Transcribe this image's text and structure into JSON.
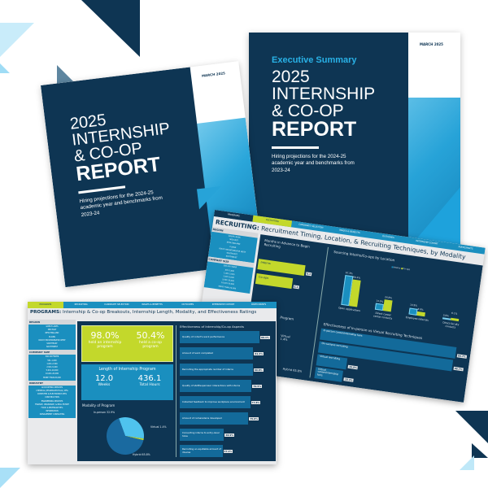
{
  "colors": {
    "navy": "#0e3553",
    "blue": "#1a8fbf",
    "light_blue": "#7fd0f0",
    "lime": "#c3d82b"
  },
  "left_cover": {
    "date": "MARCH 2025",
    "title_line1": "2025",
    "title_line2": "INTERNSHIP",
    "title_line3": "& CO-OP",
    "title_line4": "REPORT",
    "subtitle": "Hiring projections for the 2024-25 academic year and benchmarks from 2023-24"
  },
  "right_cover": {
    "date": "MARCH 2025",
    "kicker": "Executive Summary",
    "title_line1": "2025",
    "title_line2": "INTERNSHIP",
    "title_line3": "& CO-OP",
    "title_line4": "REPORT",
    "subtitle": "Hiring projections for the 2024-25 academic year and benchmarks from 2023-24"
  },
  "tabs": [
    "PROGRAMS",
    "RECRUITING",
    "CANDIDATE SELECTION",
    "WAGES & BENEFITS",
    "OUTCOMES",
    "INTERNSHIP COHORT",
    "PARTICIPANTS"
  ],
  "filters": {
    "region_label": "REGION",
    "regions": [
      "GREAT LAKES",
      "MID EAST",
      "NEW ENGLAND",
      "PLAINS",
      "ROCKY MOUNTAINS/FAR WEST",
      "SOUTHEAST",
      "SOUTHWEST"
    ],
    "size_label": "COMPANY SIZE",
    "sizes": [
      "500 OR FEWER",
      "501-1,000",
      "1,001-2,500",
      "2,501-5,000",
      "5,001-10,000",
      "10,001-20,000",
      "MORE THAN 20,000"
    ],
    "industry_label": "INDUSTRY",
    "industries": [
      "ACCOUNTING SERVICES",
      "CHEMICAL (PHARMACEUTICAL) MFG",
      "COMPUTER & ELECTRONICS MFG",
      "CONSTRUCTION",
      "ENGINEERING SERVICES",
      "FINANCE, INSURANCE, & REAL ESTATE",
      "FOOD & BEVERAGE MFG",
      "INFORMATION",
      "MANAGEMENT CONSULTING"
    ]
  },
  "programs": {
    "title_bold": "PROGRAMS:",
    "title_rest": " Internship & Co-op Breakouts, Internship Length, Modality, and Effectiveness Ratings",
    "internship_pct": "98.0%",
    "internship_label": "held an internship program",
    "coop_pct": "50.4%",
    "coop_label": "held a co-op program",
    "length_title": "Length of Internship Program",
    "weeks": "12.0",
    "weeks_label": "Weeks",
    "hours": "436.1",
    "hours_label": "Total Hours",
    "modality_title": "Modality of Program",
    "modality": [
      {
        "label": "In-person 32.9%",
        "value": 32.9
      },
      {
        "label": "Virtual 1.4%",
        "value": 1.4
      },
      {
        "label": "Hybrid 65.8%",
        "value": 65.8
      }
    ],
    "effectiveness_title": "Effectiveness of Internship/Co-op Aspects",
    "effectiveness": [
      {
        "label": "Quality of cohort's work performance",
        "value": "88.1%",
        "v": 88.1
      },
      {
        "label": "Amount of work completed",
        "value": "81.3%",
        "v": 81.3
      },
      {
        "label": "Recruiting the appropriate number of interns",
        "value": "80.8%",
        "v": 80.8
      },
      {
        "label": "Quality of staff/supervisor interactions with interns",
        "value": "79.5%",
        "v": 79.5
      },
      {
        "label": "Collected feedback to improve workplace environment",
        "value": "77.8%",
        "v": 77.8
      },
      {
        "label": "Amount of camaraderie developed",
        "value": "75.8%",
        "v": 75.8
      },
      {
        "label": "Converting interns to entry-level hires",
        "value": "48.9%",
        "v": 48.9
      },
      {
        "label": "Recruiting an equitable amount of diverse",
        "value": "47.2%",
        "v": 47.2
      }
    ]
  },
  "recruiting": {
    "title_bold": "RECRUITING:",
    "title_rest": " Recruitment Timing, Location, & Recruiting Techniques, by Modality",
    "months_title": "Months in Advance to Begin Recruiting",
    "months": [
      {
        "label": "Interns",
        "value": "8.3",
        "v": 8.3
      },
      {
        "label": "Co-ops",
        "value": "6.4",
        "v": 6.4
      }
    ],
    "program_label": "Program",
    "virtual_label": "Virtual 1.4%",
    "hybrid_label": "Hybrid 65.8%",
    "sourcing_title": "Sourcing Interns/Co-ops by Location",
    "legend": [
      "Interns",
      "Co-ops"
    ],
    "sourcing": [
      {
        "label": "Open applications",
        "interns": "67.3%",
        "coops": "60.4%",
        "i": 67.3,
        "c": 60.4
      },
      {
        "label": "Direct career center contacts",
        "interns": "14.0%",
        "coops": "24.8%",
        "i": 14.0,
        "c": 24.8
      },
      {
        "label": "Employee referrals",
        "interns": "14.9%",
        "coops": "8.8%",
        "i": 14.9,
        "c": 8.8
      },
      {
        "label": "Direct faculty contacts",
        "interns": "3.8%",
        "coops": "6.1%",
        "i": 3.8,
        "c": 6.1
      }
    ],
    "techniques_title": "Effectiveness of In-person vs Virtual Recruiting Techniques",
    "techniques": [
      {
        "label": "In-person career/internship fairs",
        "value": "89.7%",
        "v": 89.7
      },
      {
        "label": "On-campus recruiting",
        "value": "88.7%",
        "v": 88.7
      },
      {
        "label": "Virtual recruiting",
        "value": "20.0%",
        "v": 20.0
      },
      {
        "label": "Virtual career/internship fairs",
        "value": "18.3%",
        "v": 18.3
      }
    ]
  }
}
